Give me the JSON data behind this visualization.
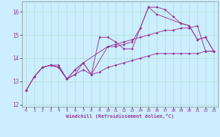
{
  "title": "",
  "xlabel": "Windchill (Refroidissement éolien,°C)",
  "ylabel": "",
  "background_color": "#cceeff",
  "grid_color": "#aaddcc",
  "line_color": "#993399",
  "xlim": [
    -0.5,
    23.5
  ],
  "ylim": [
    11.9,
    16.45
  ],
  "xticks": [
    0,
    1,
    2,
    3,
    4,
    5,
    6,
    7,
    8,
    9,
    10,
    11,
    12,
    13,
    14,
    15,
    16,
    17,
    18,
    19,
    20,
    21,
    22,
    23
  ],
  "yticks": [
    12,
    13,
    14,
    15,
    16
  ],
  "series": [
    [
      0,
      12.6
    ],
    [
      1,
      13.2
    ],
    [
      2,
      13.6
    ],
    [
      3,
      13.7
    ],
    [
      4,
      13.6
    ],
    [
      5,
      13.1
    ],
    [
      6,
      13.5
    ],
    [
      7,
      13.8
    ],
    [
      8,
      13.3
    ],
    [
      9,
      14.9
    ],
    [
      10,
      14.9
    ],
    [
      11,
      14.7
    ],
    [
      12,
      14.4
    ],
    [
      13,
      14.4
    ],
    [
      14,
      15.3
    ],
    [
      15,
      16.2
    ],
    [
      16,
      16.2
    ],
    [
      17,
      16.1
    ],
    [
      18,
      15.8
    ],
    [
      19,
      15.5
    ],
    [
      20,
      15.4
    ],
    [
      21,
      14.8
    ],
    [
      22,
      14.9
    ],
    [
      23,
      14.3
    ]
  ],
  "line1_x": [
    0,
    1,
    2,
    3,
    4,
    5,
    6,
    7,
    8,
    9,
    10,
    11,
    12,
    13,
    14,
    15,
    16,
    17,
    18,
    19,
    20,
    21,
    22,
    23
  ],
  "line1_y": [
    12.6,
    13.2,
    13.6,
    13.7,
    13.6,
    13.1,
    13.5,
    13.8,
    13.3,
    14.9,
    14.9,
    14.7,
    14.4,
    14.4,
    15.3,
    16.2,
    16.2,
    16.1,
    15.8,
    15.5,
    15.4,
    14.8,
    14.9,
    14.3
  ],
  "line2_x": [
    0,
    1,
    2,
    3,
    4,
    5,
    6,
    7,
    8,
    10,
    11,
    12,
    13,
    14,
    15,
    16,
    17,
    18,
    19,
    20,
    21,
    22,
    23
  ],
  "line2_y": [
    12.6,
    13.2,
    13.6,
    13.7,
    13.6,
    13.1,
    13.5,
    13.8,
    13.3,
    14.5,
    14.6,
    14.7,
    14.8,
    14.9,
    15.0,
    15.1,
    15.2,
    15.2,
    15.3,
    15.3,
    15.4,
    14.3,
    14.3
  ],
  "line3_x": [
    0,
    1,
    2,
    3,
    4,
    5,
    6,
    7,
    8,
    9,
    10,
    11,
    12,
    13,
    14,
    15,
    16,
    17,
    18,
    19,
    20,
    21,
    22,
    23
  ],
  "line3_y": [
    12.6,
    13.2,
    13.6,
    13.7,
    13.6,
    13.1,
    13.3,
    13.5,
    13.3,
    13.4,
    13.6,
    13.7,
    13.8,
    13.9,
    14.0,
    14.1,
    14.2,
    14.2,
    14.2,
    14.2,
    14.2,
    14.2,
    14.3,
    14.3
  ],
  "line4_x": [
    1,
    2,
    3,
    4,
    5,
    6,
    7,
    10,
    11,
    12,
    13,
    14,
    15,
    16,
    19,
    20,
    21,
    22,
    23
  ],
  "line4_y": [
    13.2,
    13.6,
    13.7,
    13.7,
    13.1,
    13.3,
    13.8,
    14.5,
    14.5,
    14.6,
    14.7,
    15.3,
    16.2,
    15.9,
    15.5,
    15.4,
    14.8,
    14.9,
    14.3
  ]
}
